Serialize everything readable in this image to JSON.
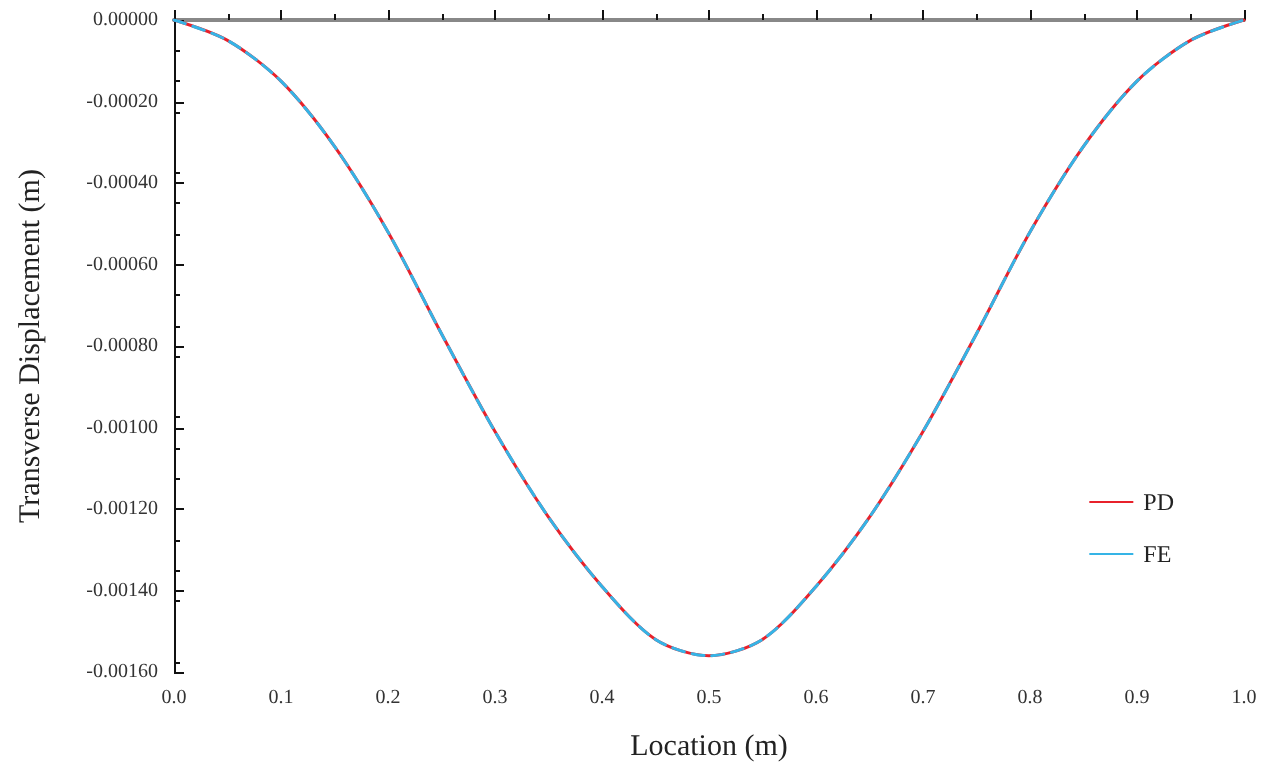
{
  "chart_data": {
    "type": "line",
    "xlabel": "Location (m)",
    "ylabel": "Transverse Displacement (m)",
    "x": [
      0,
      0.05,
      0.1,
      0.15,
      0.2,
      0.25,
      0.3,
      0.35,
      0.4,
      0.45,
      0.5,
      0.55,
      0.6,
      0.65,
      0.7,
      0.75,
      0.8,
      0.85,
      0.9,
      0.95,
      1.0
    ],
    "series": [
      {
        "name": "PD",
        "color": "#e8212b",
        "line_style": "solid",
        "values": [
          0,
          -5e-05,
          -0.00015,
          -0.00031,
          -0.00052,
          -0.00077,
          -0.00101,
          -0.00122,
          -0.00139,
          -0.00152,
          -0.00156,
          -0.00152,
          -0.00139,
          -0.00122,
          -0.00101,
          -0.00077,
          -0.00052,
          -0.00031,
          -0.00015,
          -5e-05,
          0
        ]
      },
      {
        "name": "FE",
        "color": "#35b4e6",
        "line_style": "dashed",
        "values": [
          0,
          -5e-05,
          -0.00015,
          -0.00031,
          -0.00052,
          -0.00077,
          -0.00101,
          -0.00122,
          -0.00139,
          -0.00152,
          -0.00156,
          -0.00152,
          -0.00139,
          -0.00122,
          -0.00101,
          -0.00077,
          -0.00052,
          -0.00031,
          -0.00015,
          -5e-05,
          0
        ]
      }
    ],
    "xlim": [
      0,
      1
    ],
    "xticks": [
      {
        "value": 0,
        "label": "0.0"
      },
      {
        "value": 0.1,
        "label": "0.1"
      },
      {
        "value": 0.2,
        "label": "0.2"
      },
      {
        "value": 0.3,
        "label": "0.3"
      },
      {
        "value": 0.4,
        "label": "0.4"
      },
      {
        "value": 0.5,
        "label": "0.5"
      },
      {
        "value": 0.6,
        "label": "0.6"
      },
      {
        "value": 0.7,
        "label": "0.7"
      },
      {
        "value": 0.8,
        "label": "0.8"
      },
      {
        "value": 0.9,
        "label": "0.9"
      },
      {
        "value": 1,
        "label": "1.0"
      }
    ],
    "ylim": [
      -0.0016,
      0
    ],
    "yticks": [
      {
        "value": -0.0016,
        "label": "-0.00160"
      },
      {
        "value": -0.0014,
        "label": "-0.00140"
      },
      {
        "value": -0.0012,
        "label": "-0.00120"
      },
      {
        "value": -0.001,
        "label": "-0.00100"
      },
      {
        "value": -0.0008,
        "label": "-0.00080"
      },
      {
        "value": -0.0006,
        "label": "-0.00060"
      },
      {
        "value": -0.0004,
        "label": "-0.00040"
      },
      {
        "value": -0.0002,
        "label": "-0.00020"
      },
      {
        "value": 0,
        "label": "0.00000"
      }
    ],
    "grid": false,
    "legend": "right",
    "marker": "none"
  }
}
